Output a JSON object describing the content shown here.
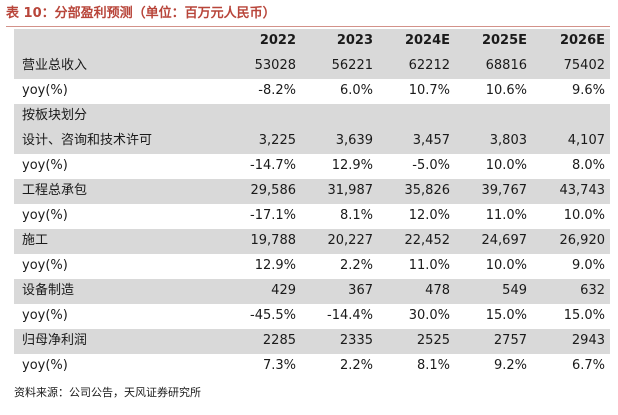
{
  "title": "表 10：分部盈利预测（单位：百万元人民币）",
  "header": {
    "label": "",
    "years": [
      "2022",
      "2023",
      "2024E",
      "2025E",
      "2026E"
    ]
  },
  "rows": [
    {
      "label": "营业总收入",
      "values": [
        "53028",
        "56221",
        "62212",
        "68816",
        "75402"
      ],
      "shaded": true
    },
    {
      "label": "yoy(%)",
      "values": [
        "-8.2%",
        "6.0%",
        "10.7%",
        "10.6%",
        "9.6%"
      ],
      "shaded": false
    },
    {
      "label": "按板块划分",
      "values": [
        "",
        "",
        "",
        "",
        ""
      ],
      "shaded": true
    },
    {
      "label": "设计、咨询和技术许可",
      "values": [
        "3,225",
        "3,639",
        "3,457",
        "3,803",
        "4,107"
      ],
      "shaded": true
    },
    {
      "label": "yoy(%)",
      "values": [
        "-14.7%",
        "12.9%",
        "-5.0%",
        "10.0%",
        "8.0%"
      ],
      "shaded": false
    },
    {
      "label": "工程总承包",
      "values": [
        "29,586",
        "31,987",
        "35,826",
        "39,767",
        "43,743"
      ],
      "shaded": true
    },
    {
      "label": "yoy(%)",
      "values": [
        "-17.1%",
        "8.1%",
        "12.0%",
        "11.0%",
        "10.0%"
      ],
      "shaded": false
    },
    {
      "label": "施工",
      "values": [
        "19,788",
        "20,227",
        "22,452",
        "24,697",
        "26,920"
      ],
      "shaded": true
    },
    {
      "label": "yoy(%)",
      "values": [
        "12.9%",
        "2.2%",
        "11.0%",
        "10.0%",
        "9.0%"
      ],
      "shaded": false
    },
    {
      "label": "设备制造",
      "values": [
        "429",
        "367",
        "478",
        "549",
        "632"
      ],
      "shaded": true
    },
    {
      "label": "yoy(%)",
      "values": [
        "-45.5%",
        "-14.4%",
        "30.0%",
        "15.0%",
        "15.0%"
      ],
      "shaded": false
    },
    {
      "label": "归母净利润",
      "values": [
        "2285",
        "2335",
        "2525",
        "2757",
        "2943"
      ],
      "shaded": true
    },
    {
      "label": "yoy(%)",
      "values": [
        "7.3%",
        "2.2%",
        "8.1%",
        "9.2%",
        "6.7%"
      ],
      "shaded": false
    }
  ],
  "source": "资料来源：公司公告，天风证券研究所",
  "colors": {
    "title": "#b8453a",
    "shade": "#d9d9d9",
    "rule": "#d3928a"
  }
}
